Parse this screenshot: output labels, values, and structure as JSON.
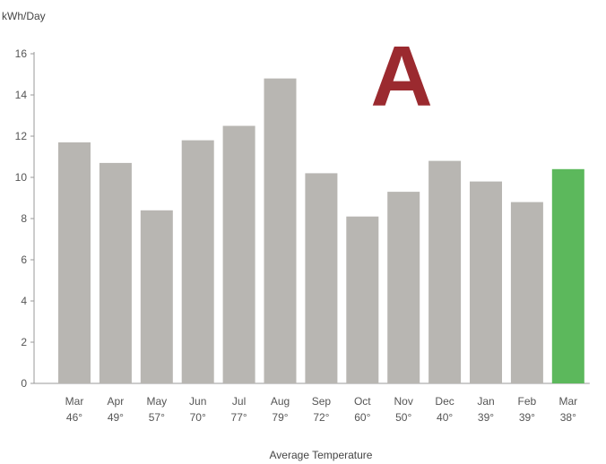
{
  "chart_data": {
    "type": "bar",
    "ylabel": "kWh/Day",
    "xlabel": "Average Temperature",
    "panel_label": "A",
    "ylim": [
      0,
      16
    ],
    "yticks": [
      "0",
      "2",
      "4",
      "6",
      "8",
      "10",
      "12",
      "14",
      "16"
    ],
    "categories": [
      {
        "month": "Mar",
        "temp": "46°"
      },
      {
        "month": "Apr",
        "temp": "49°"
      },
      {
        "month": "May",
        "temp": "57°"
      },
      {
        "month": "Jun",
        "temp": "70°"
      },
      {
        "month": "Jul",
        "temp": "77°"
      },
      {
        "month": "Aug",
        "temp": "79°"
      },
      {
        "month": "Sep",
        "temp": "72°"
      },
      {
        "month": "Oct",
        "temp": "60°"
      },
      {
        "month": "Nov",
        "temp": "50°"
      },
      {
        "month": "Dec",
        "temp": "40°"
      },
      {
        "month": "Jan",
        "temp": "39°"
      },
      {
        "month": "Feb",
        "temp": "39°"
      },
      {
        "month": "Mar",
        "temp": "38°"
      }
    ],
    "values": [
      11.7,
      10.7,
      8.4,
      11.8,
      12.5,
      14.8,
      10.2,
      8.1,
      9.3,
      10.8,
      9.8,
      8.8,
      10.4
    ],
    "highlight_index": 12,
    "grid": false,
    "legend": "none",
    "colors": {
      "bar": "#b8b6b2",
      "highlight": "#5cb85c",
      "panel_letter": "#9b2a2f",
      "axis": "#9a9a9a"
    }
  }
}
